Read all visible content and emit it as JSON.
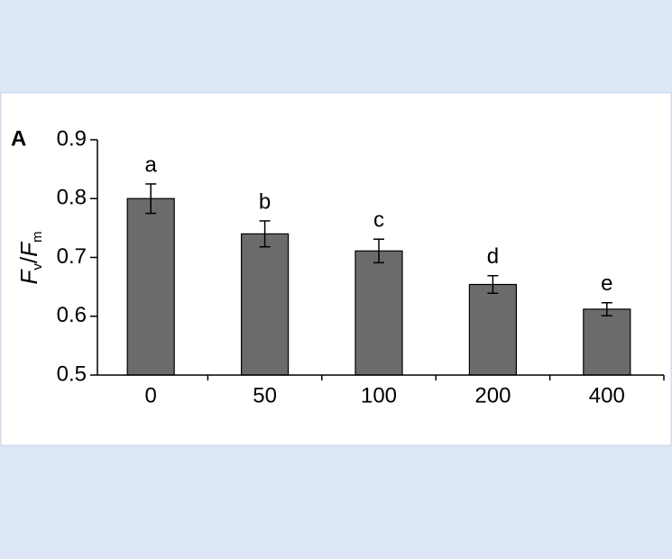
{
  "chart_data": {
    "type": "bar",
    "panel_label": "A",
    "ylabel": [
      "F",
      "v",
      "/",
      "F",
      "m"
    ],
    "categories": [
      "0",
      "50",
      "100",
      "200",
      "400"
    ],
    "values": [
      0.8,
      0.74,
      0.711,
      0.654,
      0.612
    ],
    "errors": [
      0.025,
      0.022,
      0.02,
      0.015,
      0.011
    ],
    "annotations": [
      "a",
      "b",
      "c",
      "d",
      "e"
    ],
    "color": "#6b6b6b",
    "ylim": [
      0.5,
      0.9
    ],
    "yticks": [
      0.5,
      0.6,
      0.7,
      0.8,
      0.9
    ]
  }
}
